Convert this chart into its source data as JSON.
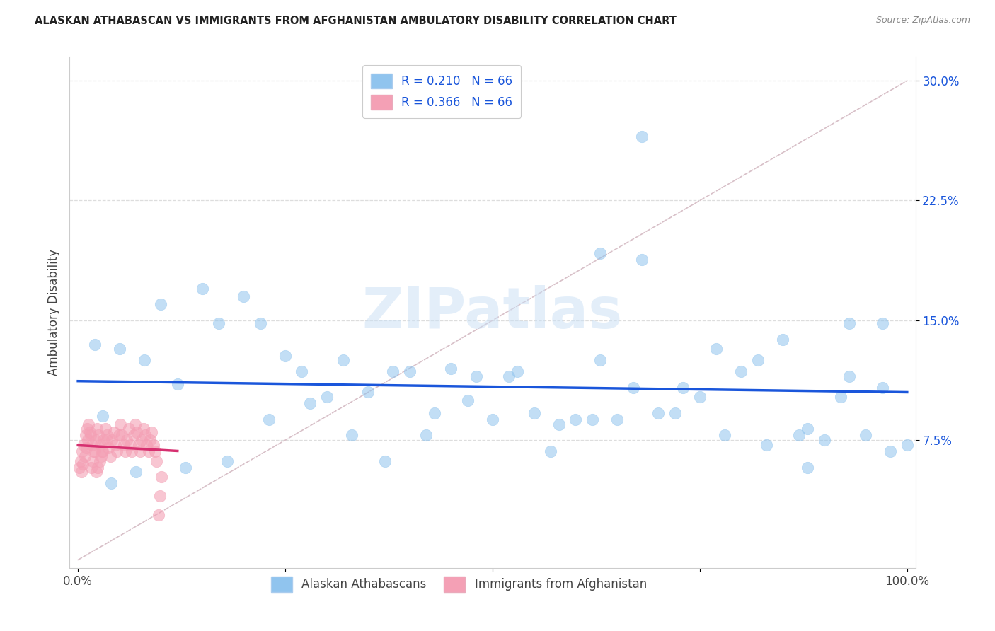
{
  "title": "ALASKAN ATHABASCAN VS IMMIGRANTS FROM AFGHANISTAN AMBULATORY DISABILITY CORRELATION CHART",
  "source": "Source: ZipAtlas.com",
  "ylabel": "Ambulatory Disability",
  "xlim": [
    -0.01,
    1.01
  ],
  "ylim": [
    -0.005,
    0.315
  ],
  "yticks": [
    0.075,
    0.15,
    0.225,
    0.3
  ],
  "yticklabels": [
    "7.5%",
    "15.0%",
    "22.5%",
    "30.0%"
  ],
  "xtick_positions": [
    0.0,
    0.25,
    0.5,
    0.75,
    1.0
  ],
  "xticklabels": [
    "0.0%",
    "",
    "",
    "",
    "100.0%"
  ],
  "legend1_label": "R = 0.210   N = 66",
  "legend2_label": "R = 0.366   N = 66",
  "legend_bottom_label1": "Alaskan Athabascans",
  "legend_bottom_label2": "Immigrants from Afghanistan",
  "blue_color": "#90C4EE",
  "pink_color": "#F4A0B5",
  "blue_line_color": "#1A56DB",
  "pink_line_color": "#D63070",
  "diag_line_color": "#D8C0C8",
  "watermark_color": "#C8DFF5",
  "blue_scatter_x": [
    0.02,
    0.05,
    0.03,
    0.08,
    0.1,
    0.12,
    0.15,
    0.17,
    0.2,
    0.22,
    0.25,
    0.27,
    0.3,
    0.32,
    0.35,
    0.38,
    0.4,
    0.43,
    0.45,
    0.48,
    0.5,
    0.52,
    0.55,
    0.57,
    0.6,
    0.62,
    0.63,
    0.65,
    0.67,
    0.68,
    0.7,
    0.72,
    0.75,
    0.77,
    0.8,
    0.82,
    0.85,
    0.87,
    0.88,
    0.9,
    0.92,
    0.93,
    0.95,
    0.97,
    0.98,
    1.0,
    0.04,
    0.07,
    0.13,
    0.18,
    0.23,
    0.28,
    0.33,
    0.37,
    0.42,
    0.47,
    0.53,
    0.58,
    0.63,
    0.68,
    0.73,
    0.78,
    0.83,
    0.88,
    0.93,
    0.97
  ],
  "blue_scatter_y": [
    0.135,
    0.132,
    0.09,
    0.125,
    0.16,
    0.11,
    0.17,
    0.148,
    0.165,
    0.148,
    0.128,
    0.118,
    0.102,
    0.125,
    0.105,
    0.118,
    0.118,
    0.092,
    0.12,
    0.115,
    0.088,
    0.115,
    0.092,
    0.068,
    0.088,
    0.088,
    0.125,
    0.088,
    0.108,
    0.265,
    0.092,
    0.092,
    0.102,
    0.132,
    0.118,
    0.125,
    0.138,
    0.078,
    0.082,
    0.075,
    0.102,
    0.115,
    0.078,
    0.108,
    0.068,
    0.072,
    0.048,
    0.055,
    0.058,
    0.062,
    0.088,
    0.098,
    0.078,
    0.062,
    0.078,
    0.1,
    0.118,
    0.085,
    0.192,
    0.188,
    0.108,
    0.078,
    0.072,
    0.058,
    0.148,
    0.148
  ],
  "pink_scatter_x": [
    0.003,
    0.005,
    0.007,
    0.009,
    0.011,
    0.013,
    0.015,
    0.017,
    0.019,
    0.021,
    0.023,
    0.025,
    0.027,
    0.029,
    0.031,
    0.033,
    0.035,
    0.037,
    0.039,
    0.041,
    0.043,
    0.045,
    0.047,
    0.049,
    0.051,
    0.053,
    0.055,
    0.057,
    0.059,
    0.061,
    0.063,
    0.065,
    0.067,
    0.069,
    0.071,
    0.073,
    0.075,
    0.077,
    0.079,
    0.081,
    0.083,
    0.085,
    0.087,
    0.089,
    0.091,
    0.093,
    0.095,
    0.097,
    0.099,
    0.101,
    0.002,
    0.004,
    0.006,
    0.008,
    0.01,
    0.012,
    0.014,
    0.016,
    0.018,
    0.02,
    0.022,
    0.024,
    0.026,
    0.028,
    0.03,
    0.035
  ],
  "pink_scatter_y": [
    0.062,
    0.068,
    0.072,
    0.078,
    0.082,
    0.085,
    0.078,
    0.072,
    0.068,
    0.075,
    0.082,
    0.078,
    0.072,
    0.068,
    0.075,
    0.082,
    0.078,
    0.07,
    0.065,
    0.075,
    0.08,
    0.072,
    0.068,
    0.078,
    0.085,
    0.078,
    0.072,
    0.068,
    0.075,
    0.082,
    0.072,
    0.068,
    0.078,
    0.085,
    0.08,
    0.072,
    0.068,
    0.075,
    0.082,
    0.078,
    0.072,
    0.068,
    0.075,
    0.08,
    0.072,
    0.068,
    0.062,
    0.028,
    0.04,
    0.052,
    0.058,
    0.055,
    0.06,
    0.065,
    0.07,
    0.075,
    0.08,
    0.058,
    0.062,
    0.068,
    0.055,
    0.058,
    0.062,
    0.065,
    0.068,
    0.075
  ]
}
